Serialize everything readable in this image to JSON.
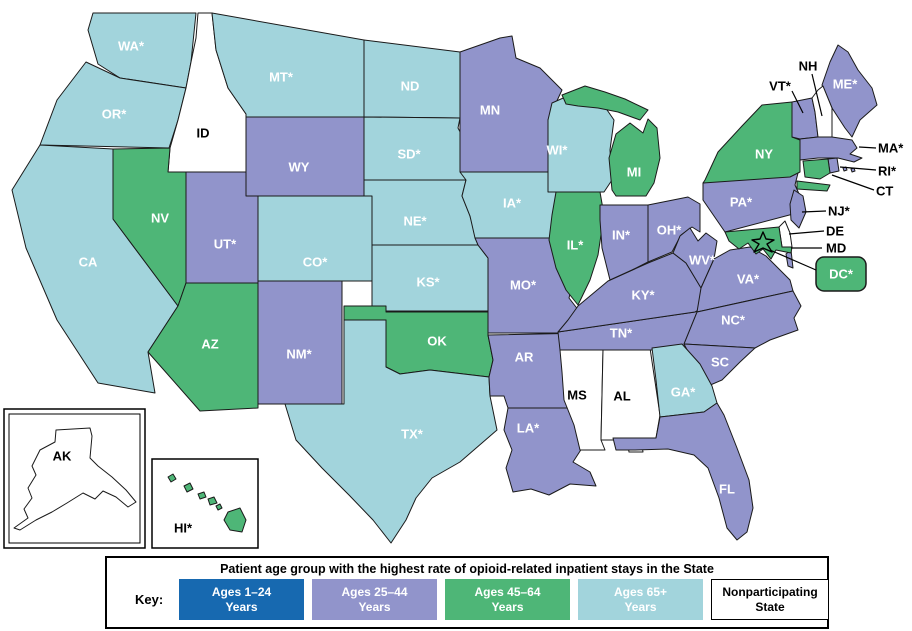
{
  "title": "Patient age group with the highest rate of opioid-related inpatient stays in the State",
  "legend": {
    "key_label": "Key:",
    "items": [
      {
        "id": "ages_1_24",
        "line1": "Ages 1–24",
        "line2": "Years",
        "color": "#1769B0",
        "text_color": "#FFFFFF",
        "border_visible": false
      },
      {
        "id": "ages_25_44",
        "line1": "Ages 25–44",
        "line2": "Years",
        "color": "#9194CB",
        "text_color": "#FFFFFF",
        "border_visible": false
      },
      {
        "id": "ages_45_64",
        "line1": "Ages 45–64",
        "line2": "Years",
        "color": "#4EB677",
        "text_color": "#FFFFFF",
        "border_visible": false
      },
      {
        "id": "ages_65_plus",
        "line1": "Ages 65+",
        "line2": "Years",
        "color": "#A2D4DC",
        "text_color": "#FFFFFF",
        "border_visible": false
      },
      {
        "id": "nonparticipating",
        "line1": "Nonparticipating",
        "line2": "State",
        "color": "#FFFFFF",
        "text_color": "#000000",
        "border_visible": true
      }
    ]
  },
  "map": {
    "border_color": "#1A1A1A",
    "states": [
      {
        "id": "WA",
        "label": "WA*",
        "category": "ages_65_plus"
      },
      {
        "id": "OR",
        "label": "OR*",
        "category": "ages_65_plus"
      },
      {
        "id": "CA",
        "label": "CA",
        "category": "ages_65_plus"
      },
      {
        "id": "ID",
        "label": "ID",
        "category": "nonparticipating"
      },
      {
        "id": "NV",
        "label": "NV",
        "category": "ages_45_64"
      },
      {
        "id": "MT",
        "label": "MT*",
        "category": "ages_65_plus"
      },
      {
        "id": "WY",
        "label": "WY",
        "category": "ages_25_44"
      },
      {
        "id": "UT",
        "label": "UT*",
        "category": "ages_25_44"
      },
      {
        "id": "CO",
        "label": "CO*",
        "category": "ages_65_plus"
      },
      {
        "id": "AZ",
        "label": "AZ",
        "category": "ages_45_64"
      },
      {
        "id": "NM",
        "label": "NM*",
        "category": "ages_25_44"
      },
      {
        "id": "ND",
        "label": "ND",
        "category": "ages_65_plus"
      },
      {
        "id": "SD",
        "label": "SD*",
        "category": "ages_65_plus"
      },
      {
        "id": "NE",
        "label": "NE*",
        "category": "ages_65_plus"
      },
      {
        "id": "KS",
        "label": "KS*",
        "category": "ages_65_plus"
      },
      {
        "id": "OK",
        "label": "OK",
        "category": "ages_45_64"
      },
      {
        "id": "TX",
        "label": "TX*",
        "category": "ages_65_plus"
      },
      {
        "id": "MN",
        "label": "MN",
        "category": "ages_25_44"
      },
      {
        "id": "IA",
        "label": "IA*",
        "category": "ages_65_plus"
      },
      {
        "id": "MO",
        "label": "MO*",
        "category": "ages_25_44"
      },
      {
        "id": "AR",
        "label": "AR",
        "category": "ages_25_44"
      },
      {
        "id": "LA",
        "label": "LA*",
        "category": "ages_25_44"
      },
      {
        "id": "WI",
        "label": "WI*",
        "category": "ages_65_plus"
      },
      {
        "id": "IL",
        "label": "IL*",
        "category": "ages_45_64"
      },
      {
        "id": "MS",
        "label": "MS",
        "category": "nonparticipating"
      },
      {
        "id": "AL",
        "label": "AL",
        "category": "nonparticipating"
      },
      {
        "id": "TN",
        "label": "TN*",
        "category": "ages_25_44"
      },
      {
        "id": "KY",
        "label": "KY*",
        "category": "ages_25_44"
      },
      {
        "id": "IN",
        "label": "IN*",
        "category": "ages_25_44"
      },
      {
        "id": "OH",
        "label": "OH*",
        "category": "ages_25_44"
      },
      {
        "id": "MI",
        "label": "MI",
        "category": "ages_45_64"
      },
      {
        "id": "WV",
        "label": "WV*",
        "category": "ages_25_44"
      },
      {
        "id": "VA",
        "label": "VA*",
        "category": "ages_25_44"
      },
      {
        "id": "NC",
        "label": "NC*",
        "category": "ages_25_44"
      },
      {
        "id": "SC",
        "label": "SC",
        "category": "ages_25_44"
      },
      {
        "id": "GA",
        "label": "GA*",
        "category": "ages_65_plus"
      },
      {
        "id": "FL",
        "label": "FL",
        "category": "ages_25_44"
      },
      {
        "id": "PA",
        "label": "PA*",
        "category": "ages_25_44"
      },
      {
        "id": "NY",
        "label": "NY",
        "category": "ages_45_64"
      },
      {
        "id": "ME",
        "label": "ME*",
        "category": "ages_25_44"
      },
      {
        "id": "VT",
        "label": "VT*",
        "category": "ages_25_44"
      },
      {
        "id": "NH",
        "label": "NH",
        "category": "nonparticipating"
      },
      {
        "id": "MA",
        "label": "MA*",
        "category": "ages_25_44"
      },
      {
        "id": "RI",
        "label": "RI*",
        "category": "ages_25_44"
      },
      {
        "id": "CT",
        "label": "CT",
        "category": "ages_45_64"
      },
      {
        "id": "NJ",
        "label": "NJ*",
        "category": "ages_25_44"
      },
      {
        "id": "DE",
        "label": "DE",
        "category": "nonparticipating"
      },
      {
        "id": "MD",
        "label": "MD",
        "category": "ages_45_64"
      },
      {
        "id": "DC",
        "label": "DC*",
        "category": "ages_45_64"
      },
      {
        "id": "AK",
        "label": "AK",
        "category": "nonparticipating"
      },
      {
        "id": "HI",
        "label": "HI*",
        "category": "ages_45_64"
      }
    ]
  }
}
